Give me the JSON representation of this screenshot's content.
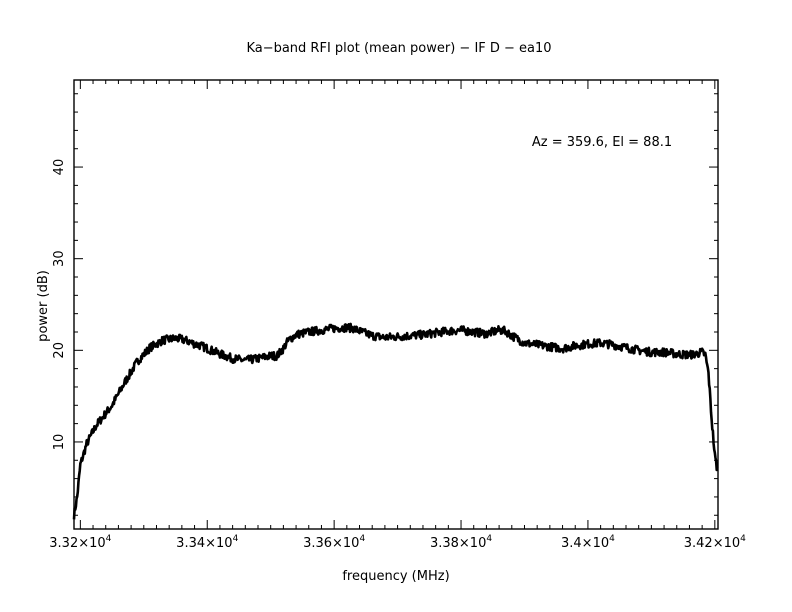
{
  "chart_data": {
    "type": "line",
    "title": "Ka−band RFI plot (mean power) − IF D − ea10",
    "xlabel": "frequency (MHz)",
    "ylabel": "power (dB)",
    "annotation": "Az = 359.6, El = 88.1",
    "xlim": [
      33190,
      34205
    ],
    "ylim": [
      0.5,
      49.5
    ],
    "x_ticks": [
      {
        "value": 33200,
        "mantissa": "3.32",
        "exp": "4"
      },
      {
        "value": 33400,
        "mantissa": "3.34",
        "exp": "4"
      },
      {
        "value": 33600,
        "mantissa": "3.36",
        "exp": "4"
      },
      {
        "value": 33800,
        "mantissa": "3.38",
        "exp": "4"
      },
      {
        "value": 34000,
        "mantissa": "3.4",
        "exp": "4"
      },
      {
        "value": 34200,
        "mantissa": "3.42",
        "exp": "4"
      }
    ],
    "x_tick_times": "×10",
    "y_ticks": [
      {
        "value": 10,
        "label": "10"
      },
      {
        "value": 20,
        "label": "20"
      },
      {
        "value": 30,
        "label": "30"
      },
      {
        "value": 40,
        "label": "40"
      }
    ],
    "grid": false,
    "series": [
      {
        "x": [
          33190,
          33195,
          33200,
          33210,
          33225,
          33250,
          33270,
          33290,
          33310,
          33330,
          33350,
          33360,
          33370,
          33380,
          33390,
          33400,
          33420,
          33440,
          33460,
          33480,
          33500,
          33510,
          33520,
          33525,
          33530,
          33540,
          33560,
          33580,
          33600,
          33620,
          33630,
          33640,
          33660,
          33680,
          33700,
          33720,
          33740,
          33760,
          33780,
          33800,
          33820,
          33840,
          33860,
          33870,
          33880,
          33900,
          33920,
          33940,
          33960,
          33980,
          34000,
          34020,
          34040,
          34060,
          34080,
          34100,
          34120,
          34140,
          34160,
          34170,
          34180,
          34185,
          34190,
          34195,
          34200,
          34203,
          34205
        ],
        "y": [
          2.0,
          4.0,
          7.5,
          9.8,
          11.8,
          14.0,
          16.5,
          18.8,
          20.3,
          21.1,
          21.3,
          21.2,
          21.0,
          20.7,
          20.5,
          20.2,
          19.6,
          19.1,
          18.9,
          19.1,
          19.4,
          19.4,
          20.2,
          20.8,
          21.2,
          21.7,
          22.0,
          22.2,
          22.4,
          22.5,
          22.4,
          22.1,
          21.6,
          21.4,
          21.5,
          21.6,
          21.7,
          21.9,
          22.1,
          22.2,
          22.0,
          21.8,
          22.2,
          22.1,
          21.6,
          20.8,
          20.6,
          20.4,
          20.2,
          20.5,
          20.7,
          20.8,
          20.6,
          20.3,
          20.0,
          19.8,
          19.8,
          19.6,
          19.5,
          19.6,
          19.8,
          19.5,
          17.5,
          12.5,
          8.5,
          7.3,
          7.0
        ]
      }
    ]
  }
}
